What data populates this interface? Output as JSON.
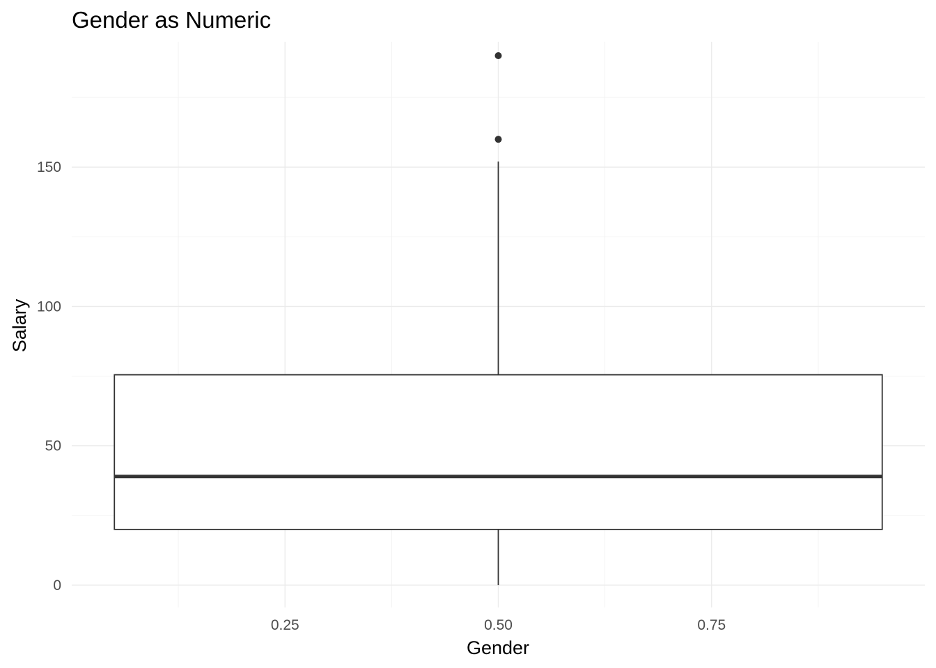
{
  "chart_data": {
    "type": "boxplot",
    "title": "Gender as Numeric",
    "xlabel": "Gender",
    "ylabel": "Salary",
    "xlim": [
      0.0,
      1.0
    ],
    "ylim": [
      -8,
      195
    ],
    "x_ticks": [
      0.25,
      0.5,
      0.75
    ],
    "x_tick_labels": [
      "0.25",
      "0.50",
      "0.75"
    ],
    "y_ticks": [
      0,
      50,
      100,
      150
    ],
    "y_tick_labels": [
      "0",
      "50",
      "100",
      "150"
    ],
    "grid": true,
    "legend": "none",
    "box": {
      "x_center": 0.5,
      "x_left": 0.05,
      "x_right": 0.95,
      "whisker_low": 0,
      "q1": 20,
      "median": 39,
      "q3": 75.5,
      "whisker_high": 152,
      "outliers": [
        160,
        190
      ]
    },
    "colors": {
      "box_line": "#333333",
      "box_fill": "#ffffff",
      "grid": "#ebebeb"
    }
  }
}
